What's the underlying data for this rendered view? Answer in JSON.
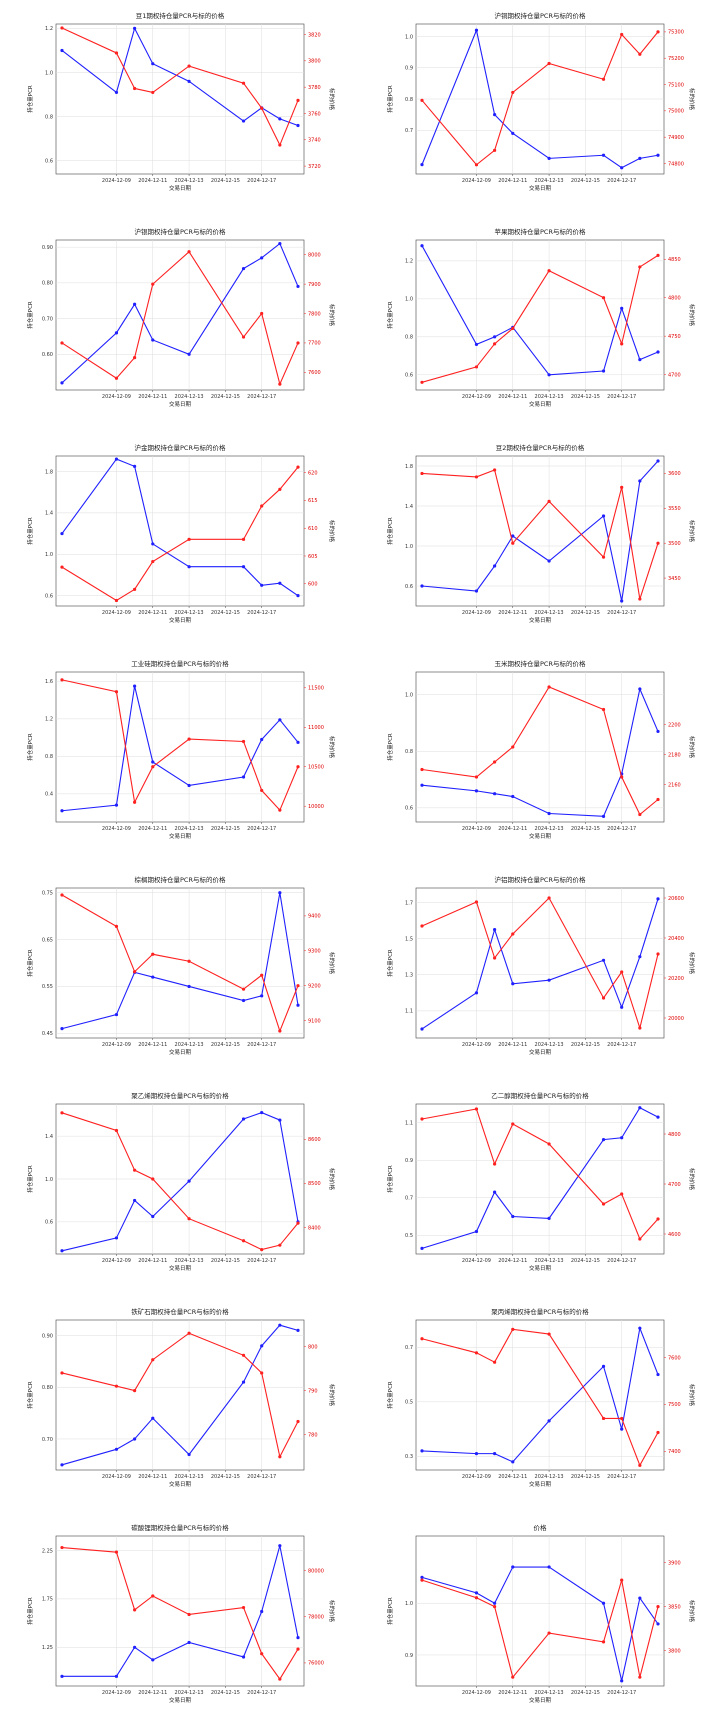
{
  "colors": {
    "open_interest": "#2020ff",
    "price": "#ff2020",
    "grid": "#dddddd",
    "axis": "#444444"
  },
  "common": {
    "xlabel": "交易日期",
    "ylabel_left": "持仓量PCR",
    "ylabel_right": "标的价格",
    "dates": [
      "2024-12-06",
      "2024-12-09",
      "2024-12-10",
      "2024-12-11",
      "2024-12-13",
      "2024-12-16",
      "2024-12-17",
      "2024-12-18",
      "2024-12-19"
    ],
    "xticks": [
      "2024-12-09",
      "2024-12-11",
      "2024-12-13",
      "2024-12-15",
      "2024-12-17"
    ]
  },
  "chart_data": [
    {
      "type": "line",
      "title": "豆1期权持仓量PCR与标的价格",
      "xlabel": "交易日期",
      "ylabel_left": "持仓量PCR",
      "ylabel_right": "标的价格",
      "x": [
        "2024-12-06",
        "2024-12-09",
        "2024-12-10",
        "2024-12-11",
        "2024-12-13",
        "2024-12-16",
        "2024-12-17",
        "2024-12-18",
        "2024-12-19"
      ],
      "left_ticks": [
        "1.2",
        "1.0",
        "0.8",
        "0.6"
      ],
      "right_ticks": [
        "3820",
        "3800",
        "3780",
        "3760",
        "3740",
        "3720"
      ],
      "ylim_left": [
        0.54,
        1.22
      ],
      "ylim_right": [
        3714,
        3828
      ],
      "series": [
        {
          "axis": "left",
          "values": [
            1.1,
            0.91,
            1.2,
            1.04,
            0.96,
            0.78,
            0.84,
            0.79,
            0.76
          ]
        },
        {
          "axis": "right",
          "values": [
            3825,
            3806,
            3779,
            3776,
            3796,
            3783,
            3764,
            3736,
            3770
          ]
        }
      ]
    },
    {
      "type": "line",
      "title": "沪铜期权持仓量PCR与标的价格",
      "xlabel": "交易日期",
      "ylabel_left": "持仓量PCR",
      "ylabel_right": "标的价格",
      "x": [
        "2024-12-06",
        "2024-12-09",
        "2024-12-10",
        "2024-12-11",
        "2024-12-13",
        "2024-12-16",
        "2024-12-17",
        "2024-12-18",
        "2024-12-19"
      ],
      "left_ticks": [
        "1.0",
        "0.9",
        "0.8",
        "0.7"
      ],
      "right_ticks": [
        "75300",
        "75200",
        "75100",
        "75000",
        "74900",
        "74800"
      ],
      "ylim_left": [
        0.56,
        1.04
      ],
      "ylim_right": [
        74760,
        75330
      ],
      "series": [
        {
          "axis": "left",
          "values": [
            0.59,
            1.02,
            0.75,
            0.69,
            0.61,
            0.62,
            0.58,
            0.61,
            0.62
          ]
        },
        {
          "axis": "right",
          "values": [
            75040,
            74795,
            74850,
            75070,
            75180,
            75120,
            75290,
            75215,
            75300
          ]
        }
      ]
    },
    {
      "type": "line",
      "title": "沪银期权持仓量PCR与标的价格",
      "xlabel": "交易日期",
      "ylabel_left": "持仓量PCR",
      "ylabel_right": "标的价格",
      "x": [
        "2024-12-06",
        "2024-12-09",
        "2024-12-10",
        "2024-12-11",
        "2024-12-13",
        "2024-12-16",
        "2024-12-17",
        "2024-12-18",
        "2024-12-19"
      ],
      "left_ticks": [
        "0.90",
        "0.80",
        "0.70",
        "0.60"
      ],
      "right_ticks": [
        "8000",
        "7900",
        "7800",
        "7700",
        "7600"
      ],
      "ylim_left": [
        0.5,
        0.92
      ],
      "ylim_right": [
        7540,
        8050
      ],
      "series": [
        {
          "axis": "left",
          "values": [
            0.52,
            0.66,
            0.74,
            0.64,
            0.6,
            0.84,
            0.87,
            0.91,
            0.79
          ]
        },
        {
          "axis": "right",
          "values": [
            7700,
            7580,
            7650,
            7900,
            8010,
            7720,
            7800,
            7560,
            7700
          ]
        }
      ]
    },
    {
      "type": "line",
      "title": "苹果期权持仓量PCR与标的价格",
      "xlabel": "交易日期",
      "ylabel_left": "持仓量PCR",
      "ylabel_right": "标的价格",
      "x": [
        "2024-12-06",
        "2024-12-09",
        "2024-12-10",
        "2024-12-11",
        "2024-12-13",
        "2024-12-16",
        "2024-12-17",
        "2024-12-18",
        "2024-12-19"
      ],
      "left_ticks": [
        "1.2",
        "1.0",
        "0.8",
        "0.6"
      ],
      "right_ticks": [
        "4850",
        "4800",
        "4750",
        "4700"
      ],
      "ylim_left": [
        0.52,
        1.31
      ],
      "ylim_right": [
        4680,
        4875
      ],
      "series": [
        {
          "axis": "left",
          "values": [
            1.28,
            0.76,
            0.8,
            0.85,
            0.6,
            0.62,
            0.95,
            0.68,
            0.72
          ]
        },
        {
          "axis": "right",
          "values": [
            4690,
            4710,
            4740,
            4760,
            4835,
            4800,
            4740,
            4840,
            4855
          ]
        }
      ]
    },
    {
      "type": "line",
      "title": "沪金期权持仓量PCR与标的价格",
      "xlabel": "交易日期",
      "ylabel_left": "持仓量PCR",
      "ylabel_right": "标的价格",
      "x": [
        "2024-12-06",
        "2024-12-09",
        "2024-12-10",
        "2024-12-11",
        "2024-12-13",
        "2024-12-16",
        "2024-12-17",
        "2024-12-18",
        "2024-12-19"
      ],
      "left_ticks": [
        "1.8",
        "1.4",
        "1.0",
        "0.6"
      ],
      "right_ticks": [
        "620",
        "615",
        "610",
        "605",
        "600"
      ],
      "ylim_left": [
        0.5,
        1.95
      ],
      "ylim_right": [
        596,
        623
      ],
      "series": [
        {
          "axis": "left",
          "values": [
            1.2,
            1.92,
            1.85,
            1.1,
            0.88,
            0.88,
            0.7,
            0.72,
            0.6
          ]
        },
        {
          "axis": "right",
          "values": [
            603,
            597,
            599,
            604,
            608,
            608,
            614,
            617,
            621
          ]
        }
      ]
    },
    {
      "type": "line",
      "title": "豆2期权持仓量PCR与标的价格",
      "xlabel": "交易日期",
      "ylabel_left": "持仓量PCR",
      "ylabel_right": "标的价格",
      "x": [
        "2024-12-06",
        "2024-12-09",
        "2024-12-10",
        "2024-12-11",
        "2024-12-13",
        "2024-12-16",
        "2024-12-17",
        "2024-12-18",
        "2024-12-19"
      ],
      "left_ticks": [
        "1.8",
        "1.4",
        "1.0",
        "0.6"
      ],
      "right_ticks": [
        "3600",
        "3550",
        "3500",
        "3450"
      ],
      "ylim_left": [
        0.4,
        1.9
      ],
      "ylim_right": [
        3410,
        3625
      ],
      "series": [
        {
          "axis": "left",
          "values": [
            0.6,
            0.55,
            0.8,
            1.1,
            0.85,
            1.3,
            0.45,
            1.65,
            1.85
          ]
        },
        {
          "axis": "right",
          "values": [
            3600,
            3595,
            3605,
            3500,
            3560,
            3480,
            3580,
            3420,
            3500
          ]
        }
      ]
    },
    {
      "type": "line",
      "title": "工业硅期权持仓量PCR与标的价格",
      "xlabel": "交易日期",
      "ylabel_left": "持仓量PCR",
      "ylabel_right": "标的价格",
      "x": [
        "2024-12-06",
        "2024-12-09",
        "2024-12-10",
        "2024-12-11",
        "2024-12-13",
        "2024-12-16",
        "2024-12-17",
        "2024-12-18",
        "2024-12-19"
      ],
      "left_ticks": [
        "1.6",
        "1.2",
        "0.8",
        "0.4"
      ],
      "right_ticks": [
        "11500",
        "11000",
        "10500",
        "10000"
      ],
      "ylim_left": [
        0.1,
        1.7
      ],
      "ylim_right": [
        9800,
        11700
      ],
      "series": [
        {
          "axis": "left",
          "values": [
            0.22,
            0.28,
            1.55,
            0.74,
            0.49,
            0.58,
            0.98,
            1.19,
            0.95
          ]
        },
        {
          "axis": "right",
          "values": [
            11600,
            11450,
            10050,
            10500,
            10850,
            10820,
            10200,
            9950,
            10500
          ]
        }
      ]
    },
    {
      "type": "line",
      "title": "玉米期权持仓量PCR与标的价格",
      "xlabel": "交易日期",
      "ylabel_left": "持仓量PCR",
      "ylabel_right": "标的价格",
      "x": [
        "2024-12-06",
        "2024-12-09",
        "2024-12-10",
        "2024-12-11",
        "2024-12-13",
        "2024-12-16",
        "2024-12-17",
        "2024-12-18",
        "2024-12-19"
      ],
      "left_ticks": [
        "1.0",
        "0.8",
        "0.6"
      ],
      "right_ticks": [
        "2200",
        "2180",
        "2160"
      ],
      "ylim_left": [
        0.55,
        1.08
      ],
      "ylim_right": [
        2135,
        2235
      ],
      "series": [
        {
          "axis": "left",
          "values": [
            0.68,
            0.66,
            0.65,
            0.64,
            0.58,
            0.57,
            0.72,
            1.02,
            0.87
          ]
        },
        {
          "axis": "right",
          "values": [
            2170,
            2165,
            2175,
            2185,
            2225,
            2210,
            2165,
            2140,
            2150
          ]
        }
      ]
    },
    {
      "type": "line",
      "title": "棕榈期权持仓量PCR与标的价格",
      "xlabel": "交易日期",
      "ylabel_left": "持仓量PCR",
      "ylabel_right": "标的价格",
      "x": [
        "2024-12-06",
        "2024-12-09",
        "2024-12-10",
        "2024-12-11",
        "2024-12-13",
        "2024-12-16",
        "2024-12-17",
        "2024-12-18",
        "2024-12-19"
      ],
      "left_ticks": [
        "0.75",
        "0.65",
        "0.55",
        "0.45"
      ],
      "right_ticks": [
        "9400",
        "9300",
        "9200",
        "9100"
      ],
      "ylim_left": [
        0.44,
        0.76
      ],
      "ylim_right": [
        9050,
        9480
      ],
      "series": [
        {
          "axis": "left",
          "values": [
            0.46,
            0.49,
            0.58,
            0.57,
            0.55,
            0.52,
            0.53,
            0.75,
            0.51
          ]
        },
        {
          "axis": "right",
          "values": [
            9460,
            9370,
            9240,
            9290,
            9270,
            9190,
            9230,
            9070,
            9200
          ]
        }
      ]
    },
    {
      "type": "line",
      "title": "沪铝期权持仓量PCR与标的价格",
      "xlabel": "交易日期",
      "ylabel_left": "持仓量PCR",
      "ylabel_right": "标的价格",
      "x": [
        "2024-12-06",
        "2024-12-09",
        "2024-12-10",
        "2024-12-11",
        "2024-12-13",
        "2024-12-16",
        "2024-12-17",
        "2024-12-18",
        "2024-12-19"
      ],
      "left_ticks": [
        "1.7",
        "1.5",
        "1.3",
        "1.1"
      ],
      "right_ticks": [
        "20600",
        "20400",
        "20200",
        "20000"
      ],
      "ylim_left": [
        0.95,
        1.78
      ],
      "ylim_right": [
        19900,
        20650
      ],
      "series": [
        {
          "axis": "left",
          "values": [
            1.0,
            1.2,
            1.55,
            1.25,
            1.27,
            1.38,
            1.12,
            1.4,
            1.72
          ]
        },
        {
          "axis": "right",
          "values": [
            20460,
            20580,
            20300,
            20420,
            20600,
            20100,
            20230,
            19950,
            20320
          ]
        }
      ]
    },
    {
      "type": "line",
      "title": "聚乙烯期权持仓量PCR与标的价格",
      "xlabel": "交易日期",
      "ylabel_left": "持仓量PCR",
      "ylabel_right": "标的价格",
      "x": [
        "2024-12-06",
        "2024-12-09",
        "2024-12-10",
        "2024-12-11",
        "2024-12-13",
        "2024-12-16",
        "2024-12-17",
        "2024-12-18",
        "2024-12-19"
      ],
      "left_ticks": [
        "1.4",
        "1.0",
        "0.6"
      ],
      "right_ticks": [
        "8600",
        "8500",
        "8400"
      ],
      "ylim_left": [
        0.3,
        1.7
      ],
      "ylim_right": [
        8340,
        8680
      ],
      "series": [
        {
          "axis": "left",
          "values": [
            0.33,
            0.45,
            0.8,
            0.65,
            0.98,
            1.56,
            1.62,
            1.55,
            0.6
          ]
        },
        {
          "axis": "right",
          "values": [
            8660,
            8620,
            8530,
            8510,
            8420,
            8370,
            8350,
            8360,
            8410
          ]
        }
      ]
    },
    {
      "type": "line",
      "title": "乙二醇期权持仓量PCR与标的价格",
      "xlabel": "交易日期",
      "ylabel_left": "持仓量PCR",
      "ylabel_right": "标的价格",
      "x": [
        "2024-12-06",
        "2024-12-09",
        "2024-12-10",
        "2024-12-11",
        "2024-12-13",
        "2024-12-16",
        "2024-12-17",
        "2024-12-18",
        "2024-12-19"
      ],
      "left_ticks": [
        "1.1",
        "0.9",
        "0.7",
        "0.5"
      ],
      "right_ticks": [
        "4800",
        "4700",
        "4600"
      ],
      "ylim_left": [
        0.4,
        1.2
      ],
      "ylim_right": [
        4560,
        4860
      ],
      "series": [
        {
          "axis": "left",
          "values": [
            0.43,
            0.52,
            0.73,
            0.6,
            0.59,
            1.01,
            1.02,
            1.18,
            1.13
          ]
        },
        {
          "axis": "right",
          "values": [
            4830,
            4850,
            4740,
            4820,
            4780,
            4660,
            4680,
            4590,
            4630
          ]
        }
      ]
    },
    {
      "type": "line",
      "title": "铁矿石期权持仓量PCR与标的价格",
      "xlabel": "交易日期",
      "ylabel_left": "持仓量PCR",
      "ylabel_right": "标的价格",
      "x": [
        "2024-12-06",
        "2024-12-09",
        "2024-12-10",
        "2024-12-11",
        "2024-12-13",
        "2024-12-16",
        "2024-12-17",
        "2024-12-18",
        "2024-12-19"
      ],
      "left_ticks": [
        "0.90",
        "0.80",
        "0.70"
      ],
      "right_ticks": [
        "800",
        "790",
        "780"
      ],
      "ylim_left": [
        0.64,
        0.93
      ],
      "ylim_right": [
        772,
        806
      ],
      "series": [
        {
          "axis": "left",
          "values": [
            0.65,
            0.68,
            0.7,
            0.74,
            0.67,
            0.81,
            0.88,
            0.92,
            0.91
          ]
        },
        {
          "axis": "right",
          "values": [
            794,
            791,
            790,
            797,
            803,
            798,
            794,
            775,
            783
          ]
        }
      ]
    },
    {
      "type": "line",
      "title": "聚丙烯期权持仓量PCR与标的价格",
      "xlabel": "交易日期",
      "ylabel_left": "持仓量PCR",
      "ylabel_right": "标的价格",
      "x": [
        "2024-12-06",
        "2024-12-09",
        "2024-12-10",
        "2024-12-11",
        "2024-12-13",
        "2024-12-16",
        "2024-12-17",
        "2024-12-18",
        "2024-12-19"
      ],
      "left_ticks": [
        "0.7",
        "0.5",
        "0.3"
      ],
      "right_ticks": [
        "7600",
        "7500",
        "7400"
      ],
      "ylim_left": [
        0.25,
        0.8
      ],
      "ylim_right": [
        7360,
        7680
      ],
      "series": [
        {
          "axis": "left",
          "values": [
            0.32,
            0.31,
            0.31,
            0.28,
            0.43,
            0.63,
            0.4,
            0.77,
            0.6
          ]
        },
        {
          "axis": "right",
          "values": [
            7640,
            7610,
            7590,
            7660,
            7650,
            7470,
            7470,
            7370,
            7440
          ]
        }
      ]
    },
    {
      "type": "line",
      "title": "碳酸锂期权持仓量PCR与标的价格",
      "xlabel": "交易日期",
      "ylabel_left": "持仓量PCR",
      "ylabel_right": "标的价格",
      "x": [
        "2024-12-06",
        "2024-12-09",
        "2024-12-10",
        "2024-12-11",
        "2024-12-13",
        "2024-12-16",
        "2024-12-17",
        "2024-12-18",
        "2024-12-19"
      ],
      "left_ticks": [
        "2.25",
        "1.75",
        "1.25"
      ],
      "right_ticks": [
        "80000",
        "78000",
        "76000"
      ],
      "ylim_left": [
        0.85,
        2.4
      ],
      "ylim_right": [
        75000,
        81500
      ],
      "series": [
        {
          "axis": "left",
          "values": [
            0.95,
            0.95,
            1.25,
            1.12,
            1.3,
            1.15,
            1.62,
            2.3,
            1.35
          ]
        },
        {
          "axis": "right",
          "values": [
            81000,
            80800,
            78300,
            78900,
            78100,
            78400,
            76400,
            75300,
            76600
          ]
        }
      ]
    },
    {
      "type": "line",
      "title": "价格",
      "xlabel": "交易日期",
      "ylabel_left": "持仓量PCR",
      "ylabel_right": "标的价格",
      "x": [
        "2024-12-06",
        "2024-12-09",
        "2024-12-10",
        "2024-12-11",
        "2024-12-13",
        "2024-12-16",
        "2024-12-17",
        "2024-12-18",
        "2024-12-19"
      ],
      "left_ticks": [
        "1.0",
        "0.9"
      ],
      "right_ticks": [
        "3900",
        "3850",
        "3800"
      ],
      "ylim_left": [
        0.84,
        1.13
      ],
      "ylim_right": [
        3760,
        3930
      ],
      "series": [
        {
          "axis": "left",
          "values": [
            1.05,
            1.02,
            1.0,
            1.07,
            1.07,
            1.0,
            0.85,
            1.01,
            0.96
          ]
        },
        {
          "axis": "right",
          "values": [
            3880,
            3860,
            3850,
            3770,
            3820,
            3810,
            3880,
            3770,
            3850
          ]
        }
      ]
    }
  ]
}
